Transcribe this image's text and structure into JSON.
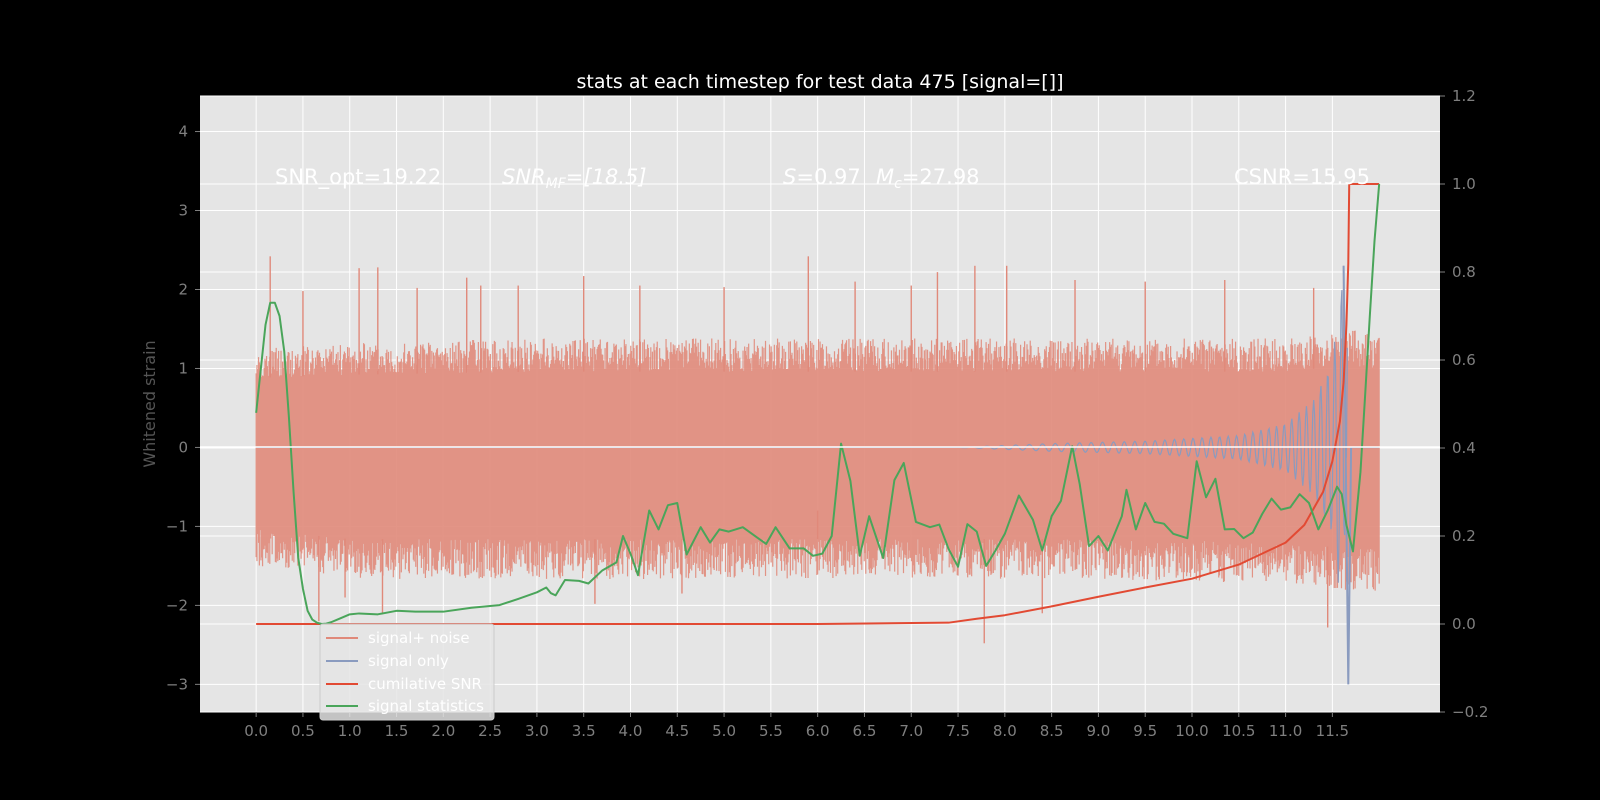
{
  "colors": {
    "figure_bg": "#000000",
    "axes_bg": "#e5e5e5",
    "grid": "#ffffff",
    "tick": "#7f7f7f",
    "noise": "#e0897a",
    "signal": "#8a9bbf",
    "cumulative_snr": "#e24a33",
    "signal_statistics": "#4aa55a"
  },
  "chart_data": {
    "type": "line",
    "title": "stats at each timestep for test data 475 [signal=[]]",
    "ylabel": "Whitened strain",
    "xlabel": "",
    "xlim": [
      -0.6,
      12.65
    ],
    "ylim": [
      -3.35,
      4.45
    ],
    "ylim_right": [
      -0.2,
      1.2
    ],
    "grid": true,
    "legend_position": "lower-left",
    "x_ticks": [
      "0.0",
      "0.5",
      "1.0",
      "1.5",
      "2.0",
      "2.5",
      "3.0",
      "3.5",
      "4.0",
      "4.5",
      "5.0",
      "5.5",
      "6.0",
      "6.5",
      "7.0",
      "7.5",
      "8.0",
      "8.5",
      "9.0",
      "9.5",
      "10.0",
      "10.5",
      "11.0",
      "11.5"
    ],
    "y_ticks": [
      "4",
      "3",
      "2",
      "1",
      "0",
      "−1",
      "−2",
      "−3"
    ],
    "y_right_ticks": [
      "1.2",
      "1.0",
      "0.8",
      "0.6",
      "0.4",
      "0.2",
      "0.0",
      "−0.2"
    ],
    "annotations": {
      "snr_opt": "SNR_opt=19.22",
      "snr_mf_name": "SNR",
      "snr_mf_sub": "MF",
      "snr_mf_value": "=[18.5]",
      "s_name": "S",
      "s_value": "=0.97",
      "mc_name": "M",
      "mc_sub": "c",
      "mc_value": "=27.98",
      "csnr": "CSNR=15.95"
    },
    "series": [
      {
        "name": "signal+ noise",
        "axis": "left",
        "style": "dense noise trace, approx. ±1.2 baseline with spikes to ±2.4",
        "envelope_upper": [
          [
            0.0,
            1.1
          ],
          [
            1.0,
            1.15
          ],
          [
            3.0,
            1.2
          ],
          [
            6.0,
            1.2
          ],
          [
            9.0,
            1.2
          ],
          [
            11.0,
            1.2
          ],
          [
            11.65,
            1.3
          ],
          [
            12.0,
            1.25
          ]
        ],
        "envelope_lower": [
          [
            0.0,
            -1.3
          ],
          [
            1.0,
            -1.45
          ],
          [
            3.0,
            -1.45
          ],
          [
            6.0,
            -1.45
          ],
          [
            9.0,
            -1.45
          ],
          [
            11.0,
            -1.5
          ],
          [
            11.65,
            -1.6
          ],
          [
            12.0,
            -1.6
          ]
        ],
        "spikes": [
          [
            0.15,
            2.42
          ],
          [
            0.5,
            1.98
          ],
          [
            0.67,
            -2.2
          ],
          [
            0.95,
            -1.9
          ],
          [
            1.1,
            2.27
          ],
          [
            1.3,
            2.28
          ],
          [
            1.35,
            -2.1
          ],
          [
            1.72,
            2.02
          ],
          [
            2.25,
            2.15
          ],
          [
            2.4,
            2.05
          ],
          [
            2.8,
            2.05
          ],
          [
            3.5,
            2.17
          ],
          [
            3.62,
            -1.98
          ],
          [
            4.1,
            2.05
          ],
          [
            4.55,
            -1.85
          ],
          [
            5.0,
            2.03
          ],
          [
            5.9,
            2.42
          ],
          [
            6.0,
            -0.8
          ],
          [
            6.4,
            2.1
          ],
          [
            7.0,
            2.05
          ],
          [
            7.28,
            2.22
          ],
          [
            7.68,
            2.3
          ],
          [
            7.78,
            -2.48
          ],
          [
            8.02,
            2.3
          ],
          [
            8.4,
            -2.1
          ],
          [
            8.75,
            2.12
          ],
          [
            9.5,
            2.1
          ],
          [
            10.35,
            2.12
          ],
          [
            11.3,
            2.02
          ],
          [
            11.45,
            -2.28
          ],
          [
            11.62,
            2.3
          ]
        ]
      },
      {
        "name": "signal only",
        "axis": "left",
        "style": "chirp, near zero, amplitude growing towards merger",
        "points": [
          [
            0.0,
            0.0
          ],
          [
            7.5,
            0.0
          ],
          [
            8.5,
            0.05
          ],
          [
            9.5,
            0.08
          ],
          [
            10.5,
            0.15
          ],
          [
            11.0,
            0.3
          ],
          [
            11.3,
            0.6
          ],
          [
            11.5,
            1.1
          ],
          [
            11.62,
            2.3
          ],
          [
            11.67,
            -3.0
          ],
          [
            11.7,
            0.0
          ],
          [
            12.0,
            0.0
          ]
        ]
      },
      {
        "name": "cumilative SNR",
        "axis": "right",
        "points": [
          [
            0.0,
            0.0
          ],
          [
            3.0,
            0.0
          ],
          [
            6.0,
            0.0
          ],
          [
            7.4,
            0.003
          ],
          [
            7.7,
            0.012
          ],
          [
            8.0,
            0.02
          ],
          [
            8.5,
            0.04
          ],
          [
            9.0,
            0.062
          ],
          [
            9.5,
            0.083
          ],
          [
            10.0,
            0.103
          ],
          [
            10.5,
            0.135
          ],
          [
            11.0,
            0.185
          ],
          [
            11.2,
            0.225
          ],
          [
            11.4,
            0.3
          ],
          [
            11.5,
            0.37
          ],
          [
            11.58,
            0.46
          ],
          [
            11.62,
            0.55
          ],
          [
            11.65,
            0.68
          ],
          [
            11.67,
            0.82
          ],
          [
            11.68,
            1.0
          ],
          [
            12.0,
            1.0
          ]
        ]
      },
      {
        "name": "signal statistics",
        "axis": "right",
        "points": [
          [
            0.0,
            0.48
          ],
          [
            0.05,
            0.58
          ],
          [
            0.1,
            0.68
          ],
          [
            0.15,
            0.73
          ],
          [
            0.2,
            0.73
          ],
          [
            0.25,
            0.7
          ],
          [
            0.3,
            0.62
          ],
          [
            0.35,
            0.47
          ],
          [
            0.4,
            0.3
          ],
          [
            0.45,
            0.15
          ],
          [
            0.5,
            0.08
          ],
          [
            0.55,
            0.03
          ],
          [
            0.6,
            0.01
          ],
          [
            0.65,
            0.003
          ],
          [
            0.7,
            0.0
          ],
          [
            0.75,
            0.001
          ],
          [
            0.8,
            0.004
          ],
          [
            0.9,
            0.013
          ],
          [
            1.0,
            0.022
          ],
          [
            1.1,
            0.024
          ],
          [
            1.3,
            0.022
          ],
          [
            1.5,
            0.03
          ],
          [
            1.7,
            0.028
          ],
          [
            2.0,
            0.028
          ],
          [
            2.3,
            0.037
          ],
          [
            2.6,
            0.043
          ],
          [
            2.8,
            0.057
          ],
          [
            3.0,
            0.072
          ],
          [
            3.1,
            0.083
          ],
          [
            3.15,
            0.07
          ],
          [
            3.2,
            0.065
          ],
          [
            3.3,
            0.1
          ],
          [
            3.45,
            0.098
          ],
          [
            3.55,
            0.092
          ],
          [
            3.7,
            0.122
          ],
          [
            3.85,
            0.14
          ],
          [
            3.92,
            0.2
          ],
          [
            4.0,
            0.16
          ],
          [
            4.08,
            0.111
          ],
          [
            4.2,
            0.258
          ],
          [
            4.3,
            0.215
          ],
          [
            4.4,
            0.27
          ],
          [
            4.5,
            0.275
          ],
          [
            4.6,
            0.158
          ],
          [
            4.75,
            0.22
          ],
          [
            4.85,
            0.185
          ],
          [
            4.95,
            0.215
          ],
          [
            5.05,
            0.21
          ],
          [
            5.2,
            0.22
          ],
          [
            5.35,
            0.197
          ],
          [
            5.45,
            0.182
          ],
          [
            5.55,
            0.22
          ],
          [
            5.7,
            0.172
          ],
          [
            5.85,
            0.172
          ],
          [
            5.95,
            0.155
          ],
          [
            6.05,
            0.16
          ],
          [
            6.15,
            0.2
          ],
          [
            6.25,
            0.41
          ],
          [
            6.35,
            0.325
          ],
          [
            6.45,
            0.155
          ],
          [
            6.55,
            0.245
          ],
          [
            6.7,
            0.15
          ],
          [
            6.82,
            0.327
          ],
          [
            6.92,
            0.366
          ],
          [
            7.05,
            0.232
          ],
          [
            7.2,
            0.22
          ],
          [
            7.3,
            0.226
          ],
          [
            7.4,
            0.17
          ],
          [
            7.5,
            0.13
          ],
          [
            7.6,
            0.227
          ],
          [
            7.7,
            0.21
          ],
          [
            7.8,
            0.132
          ],
          [
            7.9,
            0.167
          ],
          [
            8.0,
            0.205
          ],
          [
            8.15,
            0.292
          ],
          [
            8.3,
            0.237
          ],
          [
            8.4,
            0.167
          ],
          [
            8.5,
            0.245
          ],
          [
            8.6,
            0.28
          ],
          [
            8.72,
            0.404
          ],
          [
            8.8,
            0.318
          ],
          [
            8.9,
            0.177
          ],
          [
            9.0,
            0.2
          ],
          [
            9.1,
            0.167
          ],
          [
            9.25,
            0.245
          ],
          [
            9.3,
            0.305
          ],
          [
            9.4,
            0.215
          ],
          [
            9.5,
            0.275
          ],
          [
            9.6,
            0.232
          ],
          [
            9.7,
            0.228
          ],
          [
            9.8,
            0.205
          ],
          [
            9.95,
            0.195
          ],
          [
            10.05,
            0.37
          ],
          [
            10.15,
            0.288
          ],
          [
            10.25,
            0.33
          ],
          [
            10.35,
            0.215
          ],
          [
            10.45,
            0.216
          ],
          [
            10.55,
            0.195
          ],
          [
            10.65,
            0.208
          ],
          [
            10.75,
            0.25
          ],
          [
            10.85,
            0.285
          ],
          [
            10.95,
            0.26
          ],
          [
            11.05,
            0.265
          ],
          [
            11.15,
            0.295
          ],
          [
            11.25,
            0.275
          ],
          [
            11.35,
            0.215
          ],
          [
            11.45,
            0.258
          ],
          [
            11.55,
            0.312
          ],
          [
            11.6,
            0.295
          ],
          [
            11.65,
            0.225
          ],
          [
            11.72,
            0.165
          ],
          [
            11.8,
            0.345
          ],
          [
            11.85,
            0.52
          ],
          [
            11.9,
            0.7
          ],
          [
            11.95,
            0.87
          ],
          [
            12.0,
            1.0
          ]
        ]
      }
    ]
  }
}
